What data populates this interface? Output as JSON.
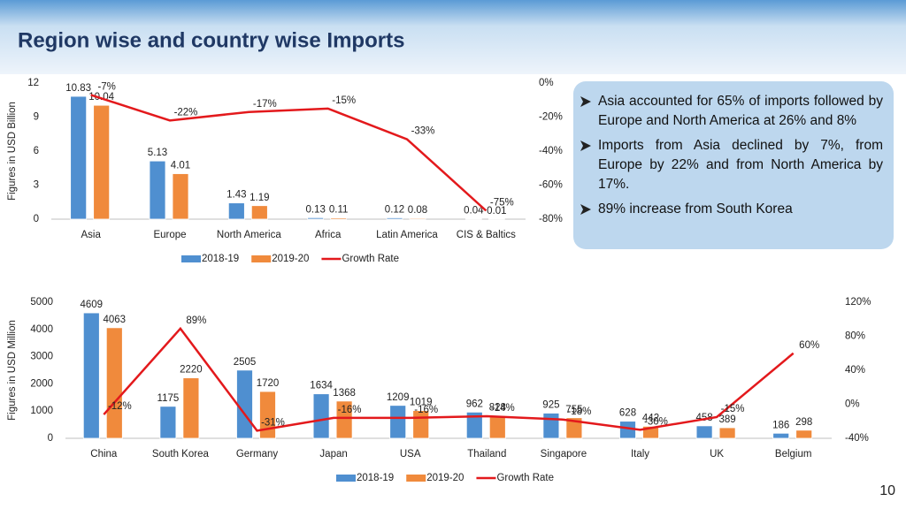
{
  "title": "Region wise and country wise Imports",
  "bullets": [
    "Asia accounted for 65% of imports followed by Europe and North America at 26% and 8%",
    "Imports from Asia declined by 7%, from Europe by 22% and from North America by 17%.",
    "89% increase from South Korea"
  ],
  "page_number": "10",
  "chart_data": [
    {
      "type": "bar",
      "ylabel": "Figures in USD Billion",
      "categories": [
        "Asia",
        "Europe",
        "North America",
        "Africa",
        "Latin America",
        "CIS & Baltics"
      ],
      "series": [
        {
          "name": "2018-19",
          "color": "#4f8fd0",
          "values": [
            10.83,
            5.13,
            1.43,
            0.13,
            0.12,
            0.04
          ]
        },
        {
          "name": "2019-20",
          "color": "#f08a3c",
          "values": [
            10.04,
            4.01,
            1.19,
            0.11,
            0.08,
            0.01
          ]
        },
        {
          "name": "Growth Rate",
          "color": "#e3191c",
          "axis": "y2",
          "values": [
            -7,
            -22,
            -17,
            -15,
            -33,
            -75
          ],
          "value_labels": [
            "-7%",
            "-22%",
            "-17%",
            "-15%",
            "-33%",
            "-75%"
          ]
        }
      ],
      "ylim": [
        0,
        12
      ],
      "yticks": [
        0,
        3,
        6,
        9,
        12
      ],
      "y2lim": [
        -80,
        0
      ],
      "y2ticks": [
        {
          "value": -80,
          "label": "-80%"
        },
        {
          "value": -60,
          "label": "-60%"
        },
        {
          "value": -40,
          "label": "-40%"
        },
        {
          "value": -20,
          "label": "-20%"
        },
        {
          "value": 0,
          "label": "0%"
        }
      ],
      "legend": "bottom"
    },
    {
      "type": "bar",
      "ylabel": "Figures in USD Million",
      "categories": [
        "China",
        "South Korea",
        "Germany",
        "Japan",
        "USA",
        "Thailand",
        "Singapore",
        "Italy",
        "UK",
        "Belgium"
      ],
      "series": [
        {
          "name": "2018-19",
          "color": "#4f8fd0",
          "values": [
            4609,
            1175,
            2505,
            1634,
            1209,
            962,
            925,
            628,
            458,
            186
          ]
        },
        {
          "name": "2019-20",
          "color": "#f08a3c",
          "values": [
            4063,
            2220,
            1720,
            1368,
            1019,
            828,
            755,
            442,
            389,
            298
          ]
        },
        {
          "name": "Growth Rate",
          "color": "#e3191c",
          "axis": "y2",
          "values": [
            -12,
            89,
            -31,
            -16,
            -16,
            -14,
            -18,
            -30,
            -15,
            60
          ],
          "value_labels": [
            "-12%",
            "89%",
            "-31%",
            "-16%",
            "-16%",
            "-14%",
            "-18%",
            "-30%",
            "-15%",
            "60%"
          ]
        }
      ],
      "ylim": [
        0,
        5000
      ],
      "yticks": [
        0,
        1000,
        2000,
        3000,
        4000,
        5000
      ],
      "y2lim": [
        -40,
        120
      ],
      "y2ticks": [
        {
          "value": -40,
          "label": "-40%"
        },
        {
          "value": 0,
          "label": "0%"
        },
        {
          "value": 40,
          "label": "40%"
        },
        {
          "value": 80,
          "label": "80%"
        },
        {
          "value": 120,
          "label": "120%"
        }
      ],
      "legend": "bottom"
    }
  ]
}
